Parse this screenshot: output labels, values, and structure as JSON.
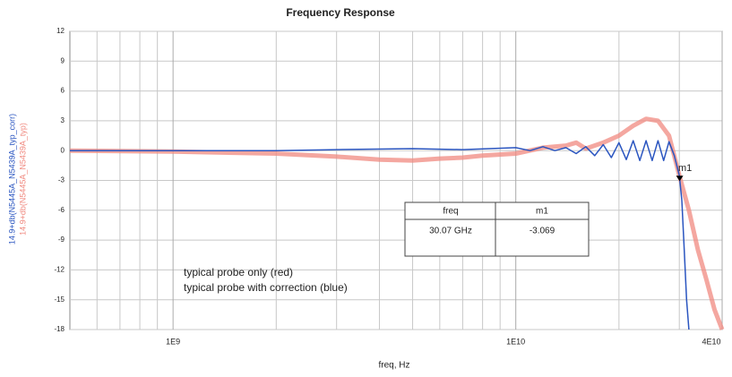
{
  "chart_data": {
    "type": "line",
    "title": "Frequency Response",
    "xlabel": "freq, Hz",
    "ylabels": [
      "14.9+db(N5445A_N5439A_typ_corr)",
      "14.9+db(N5445A_N5439A_typ)"
    ],
    "log_x": true,
    "grid": true,
    "xlim": [
      500000000,
      40000000000
    ],
    "xticks": [
      {
        "value": 1000000000,
        "label": "1E9"
      },
      {
        "value": 10000000000,
        "label": "1E10"
      },
      {
        "value": 40000000000,
        "label": "4E10"
      }
    ],
    "xminorticks": [
      600000000,
      700000000,
      800000000,
      900000000,
      2000000000,
      3000000000,
      4000000000,
      5000000000,
      6000000000,
      7000000000,
      8000000000,
      9000000000,
      20000000000,
      30000000000
    ],
    "ylim": [
      -18,
      12
    ],
    "yticks": [
      12,
      9,
      6,
      3,
      0,
      -3,
      -6,
      -9,
      -12,
      -15,
      -18
    ],
    "series": [
      {
        "name": "typical probe only (red)",
        "color": "#f08a80",
        "x": [
          500000000,
          1000000000,
          2000000000,
          3000000000,
          4000000000,
          5000000000,
          6000000000,
          7000000000,
          8000000000,
          10000000000,
          12000000000,
          14000000000,
          15000000000,
          16000000000,
          18000000000,
          20000000000,
          22000000000,
          24000000000,
          26000000000,
          28000000000,
          30000000000,
          32000000000,
          34000000000,
          36000000000,
          38000000000,
          40000000000
        ],
        "values": [
          0,
          -0.1,
          -0.3,
          -0.6,
          -0.9,
          -1,
          -0.8,
          -0.7,
          -0.5,
          -0.3,
          0.3,
          0.5,
          0.8,
          0.2,
          0.8,
          1.5,
          2.5,
          3.2,
          3,
          1.5,
          -2.5,
          -6,
          -10,
          -13,
          -16,
          -18
        ]
      },
      {
        "name": "typical probe with correction (blue)",
        "color": "#2a55c0",
        "x": [
          500000000,
          1000000000,
          2000000000,
          3000000000,
          5000000000,
          7000000000,
          10000000000,
          11000000000,
          12000000000,
          13000000000,
          14000000000,
          15000000000,
          16000000000,
          17000000000,
          18000000000,
          19000000000,
          20000000000,
          21000000000,
          22000000000,
          23000000000,
          24000000000,
          25000000000,
          26000000000,
          27000000000,
          28000000000,
          29000000000,
          30000000000,
          30500000000,
          31000000000,
          31500000000,
          32000000000
        ],
        "values": [
          0,
          0,
          0,
          0.1,
          0.2,
          0.1,
          0.3,
          0,
          0.4,
          0,
          0.3,
          -0.3,
          0.4,
          -0.5,
          0.6,
          -0.7,
          0.8,
          -0.9,
          1,
          -1,
          1,
          -1,
          1,
          -1,
          0.9,
          -0.5,
          -2.5,
          -5,
          -10,
          -15,
          -18
        ]
      }
    ],
    "marker": {
      "name": "m1",
      "x": 30070000000,
      "y": -3.069,
      "x_label": "30.07 GHz"
    },
    "marker_table_header": "freq"
  }
}
